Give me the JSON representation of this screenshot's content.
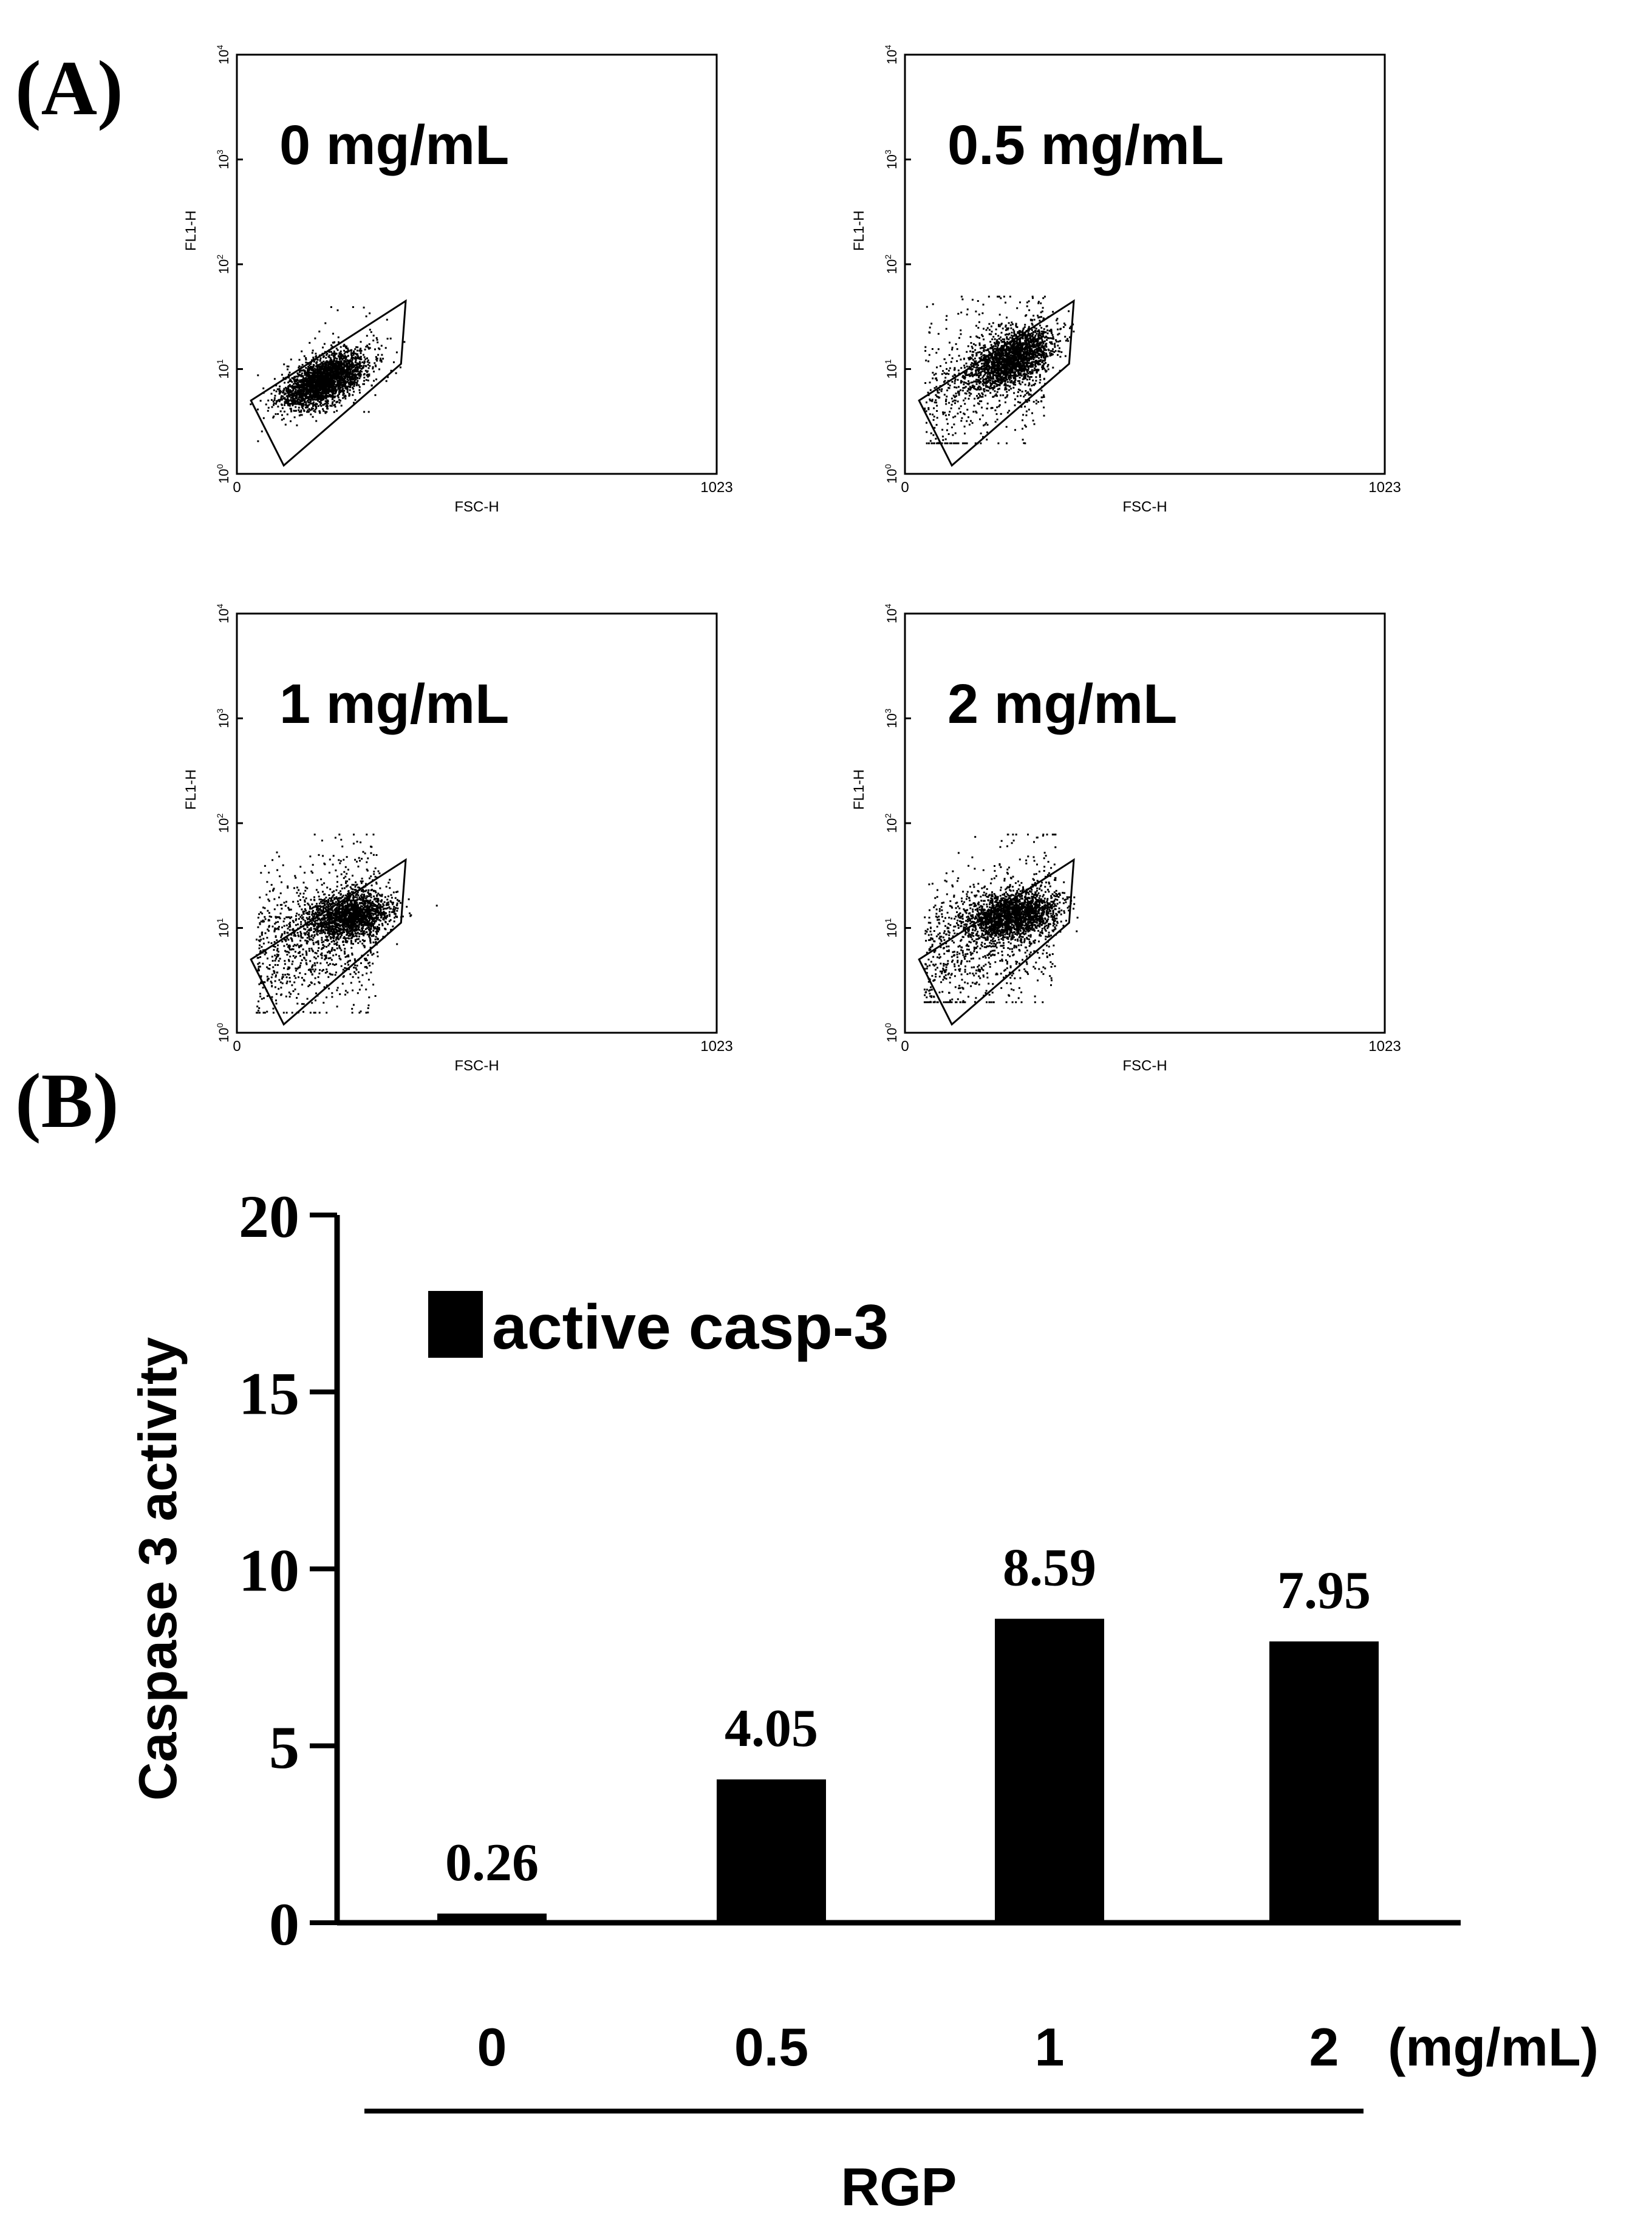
{
  "panel_labels": {
    "a": "(A)",
    "b": "(B)"
  },
  "chart_data": [
    {
      "type": "scatter",
      "title": "0 mg/mL",
      "xlabel": "FSC-H",
      "ylabel": "FL1-H",
      "xlim": [
        0,
        1023
      ],
      "x_ticks": [
        "0",
        "1023"
      ],
      "y_ticks": [
        {
          "base": "10",
          "exp": "0"
        },
        {
          "base": "10",
          "exp": "1"
        },
        {
          "base": "10",
          "exp": "2"
        },
        {
          "base": "10",
          "exp": "3"
        },
        {
          "base": "10",
          "exp": "4"
        }
      ],
      "gate": [
        [
          30,
          0.7
        ],
        [
          360,
          1.65
        ],
        [
          350,
          1.05
        ],
        [
          100,
          0.08
        ]
      ],
      "clusters": [
        {
          "cx": 185,
          "cy": 0.9,
          "sx": 45,
          "sy": 0.11,
          "n": 2600,
          "rot": 0.0017
        }
      ],
      "scatter_points": 70,
      "scatter_spread": {
        "x": [
          110,
          330
        ],
        "y": [
          0.6,
          1.6
        ]
      }
    },
    {
      "type": "scatter",
      "title": "0.5 mg/mL",
      "xlabel": "FSC-H",
      "ylabel": "FL1-H",
      "xlim": [
        0,
        1023
      ],
      "x_ticks": [
        "0",
        "1023"
      ],
      "y_ticks": [
        {
          "base": "10",
          "exp": "0"
        },
        {
          "base": "10",
          "exp": "1"
        },
        {
          "base": "10",
          "exp": "2"
        },
        {
          "base": "10",
          "exp": "3"
        },
        {
          "base": "10",
          "exp": "4"
        }
      ],
      "gate": [
        [
          30,
          0.7
        ],
        [
          360,
          1.65
        ],
        [
          350,
          1.05
        ],
        [
          100,
          0.08
        ]
      ],
      "clusters": [
        {
          "cx": 225,
          "cy": 1.1,
          "sx": 45,
          "sy": 0.12,
          "n": 1900,
          "rot": 0.0017
        }
      ],
      "scatter_points": 650,
      "scatter_spread": {
        "x": [
          40,
          300
        ],
        "y": [
          0.3,
          1.7
        ]
      }
    },
    {
      "type": "scatter",
      "title": "1 mg/mL",
      "xlabel": "FSC-H",
      "ylabel": "FL1-H",
      "xlim": [
        0,
        1023
      ],
      "x_ticks": [
        "0",
        "1023"
      ],
      "y_ticks": [
        {
          "base": "10",
          "exp": "0"
        },
        {
          "base": "10",
          "exp": "1"
        },
        {
          "base": "10",
          "exp": "2"
        },
        {
          "base": "10",
          "exp": "3"
        },
        {
          "base": "10",
          "exp": "4"
        }
      ],
      "gate": [
        [
          30,
          0.7
        ],
        [
          360,
          1.65
        ],
        [
          350,
          1.05
        ],
        [
          100,
          0.08
        ]
      ],
      "clusters": [
        {
          "cx": 240,
          "cy": 1.12,
          "sx": 45,
          "sy": 0.11,
          "n": 1700,
          "rot": 0.0008
        }
      ],
      "scatter_points": 1050,
      "scatter_spread": {
        "x": [
          40,
          300
        ],
        "y": [
          0.2,
          1.9
        ]
      }
    },
    {
      "type": "scatter",
      "title": "2 mg/mL",
      "xlabel": "FSC-H",
      "ylabel": "FL1-H",
      "xlim": [
        0,
        1023
      ],
      "x_ticks": [
        "0",
        "1023"
      ],
      "y_ticks": [
        {
          "base": "10",
          "exp": "0"
        },
        {
          "base": "10",
          "exp": "1"
        },
        {
          "base": "10",
          "exp": "2"
        },
        {
          "base": "10",
          "exp": "3"
        },
        {
          "base": "10",
          "exp": "4"
        }
      ],
      "gate": [
        [
          30,
          0.7
        ],
        [
          360,
          1.65
        ],
        [
          350,
          1.05
        ],
        [
          100,
          0.08
        ]
      ],
      "clusters": [
        {
          "cx": 225,
          "cy": 1.12,
          "sx": 48,
          "sy": 0.11,
          "n": 1800,
          "rot": 0.0008
        }
      ],
      "scatter_points": 1000,
      "scatter_spread": {
        "x": [
          40,
          320
        ],
        "y": [
          0.3,
          1.9
        ]
      }
    },
    {
      "type": "bar",
      "ylabel": "Caspase 3 activity",
      "ylim": [
        0,
        20
      ],
      "y_ticks": [
        0,
        5,
        10,
        15,
        20
      ],
      "categories": [
        "0",
        "0.5",
        "1",
        "2"
      ],
      "values": [
        0.26,
        4.05,
        8.59,
        7.95
      ],
      "data_labels": [
        "0.26",
        "4.05",
        "8.59",
        "7.95"
      ],
      "unit_label": "(mg/mL)",
      "group_label": "RGP",
      "legend": {
        "label": "active casp-3",
        "color": "#000000",
        "position": "top-left"
      }
    }
  ]
}
